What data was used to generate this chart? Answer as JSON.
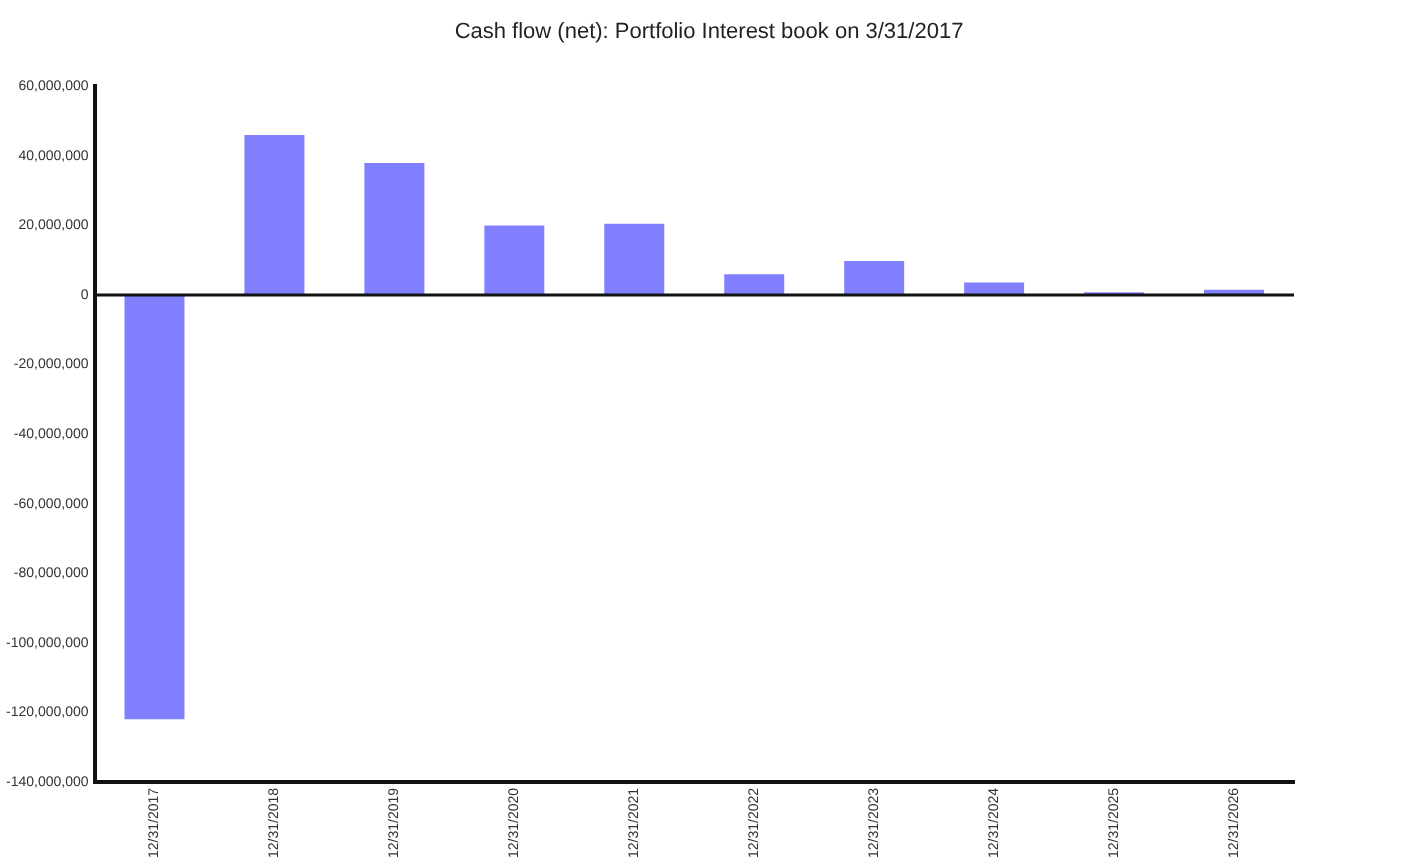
{
  "chart_data": {
    "type": "bar",
    "title": "Cash flow (net): Portfolio Interest book on 3/31/2017",
    "categories": [
      "12/31/2017",
      "12/31/2018",
      "12/31/2019",
      "12/31/2020",
      "12/31/2021",
      "12/31/2022",
      "12/31/2023",
      "12/31/2024",
      "12/31/2025",
      "12/31/2026"
    ],
    "values": [
      -122000000,
      46000000,
      38000000,
      20000000,
      20500000,
      6000000,
      9800000,
      3600000,
      800000,
      1500000
    ],
    "color": "#8080ff",
    "ylim": [
      -140000000,
      60000000
    ],
    "yticks": [
      {
        "value": -140000000,
        "label": "-140,000,000"
      },
      {
        "value": -120000000,
        "label": "-120,000,000"
      },
      {
        "value": -100000000,
        "label": "-100,000,000"
      },
      {
        "value": -80000000,
        "label": "-80,000,000"
      },
      {
        "value": -60000000,
        "label": "-60,000,000"
      },
      {
        "value": -40000000,
        "label": "-40,000,000"
      },
      {
        "value": -20000000,
        "label": "-20,000,000"
      },
      0,
      {
        "value": 20000000,
        "label": "20,000,000"
      },
      {
        "value": 40000000,
        "label": "40,000,000"
      },
      {
        "value": 60000000,
        "label": "60,000,000"
      }
    ],
    "ref_lines": [
      {
        "axis": "y",
        "value": 0,
        "color": "#111111"
      }
    ],
    "legend": false
  }
}
